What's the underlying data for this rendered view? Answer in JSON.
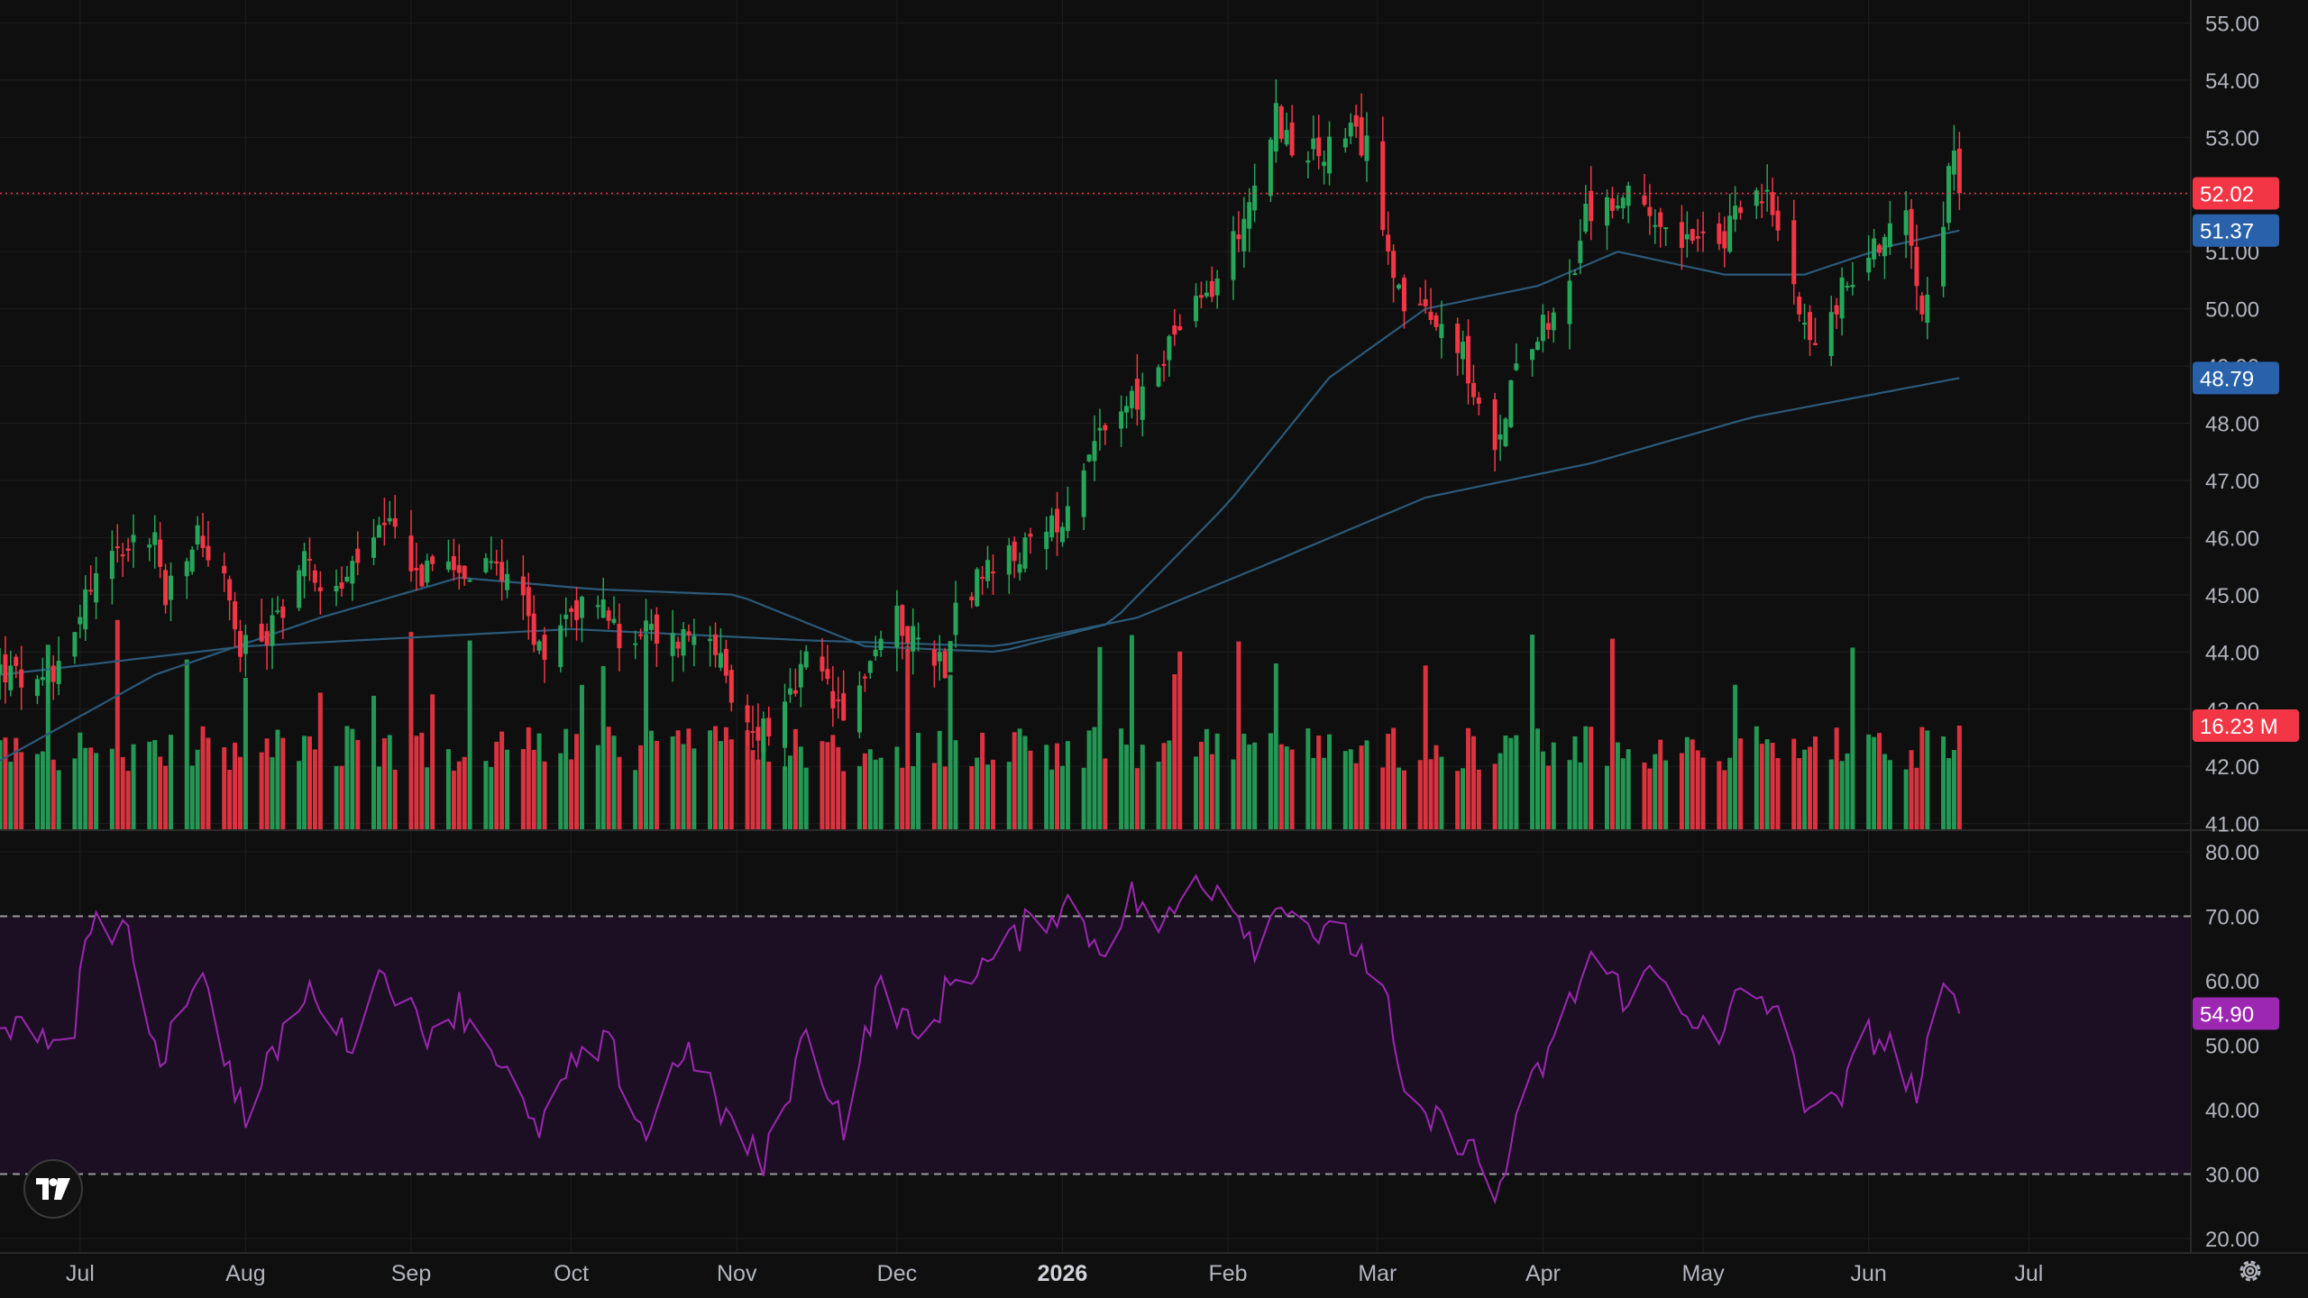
{
  "chart_data": {
    "type": "candlestick",
    "title": "",
    "x_range": [
      "2025-07-01",
      "2026-06-18"
    ],
    "price_axis": {
      "range": [
        40.9,
        55.4
      ],
      "ticks": [
        "55.00",
        "54.00",
        "53.00",
        "52.00",
        "51.00",
        "50.00",
        "49.00",
        "48.00",
        "47.00",
        "46.00",
        "45.00",
        "44.00",
        "43.00",
        "42.00",
        "41.00"
      ]
    },
    "time_axis": {
      "labels": [
        {
          "label": "Jul",
          "date": "2025-07-01"
        },
        {
          "label": "Aug",
          "date": "2025-08-01"
        },
        {
          "label": "Sep",
          "date": "2025-09-01"
        },
        {
          "label": "Oct",
          "date": "2025-10-01"
        },
        {
          "label": "Nov",
          "date": "2025-11-01"
        },
        {
          "label": "Dec",
          "date": "2025-12-01"
        },
        {
          "label": "2026",
          "date": "2026-01-01",
          "strong": true
        },
        {
          "label": "Feb",
          "date": "2026-02-01"
        },
        {
          "label": "Mar",
          "date": "2026-03-01"
        },
        {
          "label": "Apr",
          "date": "2026-04-01"
        },
        {
          "label": "May",
          "date": "2026-05-01"
        },
        {
          "label": "Jun",
          "date": "2026-06-01"
        },
        {
          "label": "Jul",
          "date": "2026-07-01"
        }
      ]
    },
    "price_anchors": [
      [
        "2025-06-16",
        43.7
      ],
      [
        "2025-06-24",
        43.3
      ],
      [
        "2025-06-27",
        43.9
      ],
      [
        "2025-07-03",
        45.2
      ],
      [
        "2025-07-09",
        45.9
      ],
      [
        "2025-07-15",
        46.0
      ],
      [
        "2025-07-17",
        44.9
      ],
      [
        "2025-07-21",
        45.6
      ],
      [
        "2025-07-23",
        46.1
      ],
      [
        "2025-07-28",
        45.2
      ],
      [
        "2025-07-31",
        44.0
      ],
      [
        "2025-08-05",
        44.3
      ],
      [
        "2025-08-12",
        45.6
      ],
      [
        "2025-08-18",
        45.0
      ],
      [
        "2025-08-25",
        46.0
      ],
      [
        "2025-08-29",
        46.1
      ],
      [
        "2025-09-03",
        45.3
      ],
      [
        "2025-09-08",
        45.8
      ],
      [
        "2025-09-12",
        45.3
      ],
      [
        "2025-09-18",
        45.5
      ],
      [
        "2025-09-22",
        45.0
      ],
      [
        "2025-09-25",
        44.0
      ],
      [
        "2025-10-01",
        44.8
      ],
      [
        "2025-10-07",
        44.9
      ],
      [
        "2025-10-10",
        44.1
      ],
      [
        "2025-10-14",
        44.4
      ],
      [
        "2025-10-20",
        44.2
      ],
      [
        "2025-10-27",
        44.5
      ],
      [
        "2025-10-31",
        43.0
      ],
      [
        "2025-11-04",
        42.6
      ],
      [
        "2025-11-10",
        42.9
      ],
      [
        "2025-11-14",
        43.8
      ],
      [
        "2025-11-18",
        43.4
      ],
      [
        "2025-11-21",
        42.7
      ],
      [
        "2025-11-26",
        43.9
      ],
      [
        "2025-12-01",
        44.6
      ],
      [
        "2025-12-05",
        44.2
      ],
      [
        "2025-12-10",
        43.8
      ],
      [
        "2025-12-12",
        44.9
      ],
      [
        "2025-12-17",
        45.3
      ],
      [
        "2025-12-22",
        45.6
      ],
      [
        "2025-12-29",
        46.0
      ],
      [
        "2026-01-02",
        46.6
      ],
      [
        "2026-01-06",
        47.6
      ],
      [
        "2026-01-12",
        48.4
      ],
      [
        "2026-01-16",
        48.4
      ],
      [
        "2026-01-22",
        49.6
      ],
      [
        "2026-01-27",
        50.1
      ],
      [
        "2026-01-30",
        50.5
      ],
      [
        "2026-02-05",
        51.9
      ],
      [
        "2026-02-10",
        53.4
      ],
      [
        "2026-02-13",
        52.8
      ],
      [
        "2026-02-18",
        52.7
      ],
      [
        "2026-02-24",
        53.0
      ],
      [
        "2026-02-27",
        52.8
      ],
      [
        "2026-03-03",
        51.2
      ],
      [
        "2026-03-06",
        50.0
      ],
      [
        "2026-03-10",
        49.8
      ],
      [
        "2026-03-16",
        49.5
      ],
      [
        "2026-03-19",
        48.5
      ],
      [
        "2026-03-23",
        47.3
      ],
      [
        "2026-03-27",
        49.2
      ],
      [
        "2026-04-01",
        49.8
      ],
      [
        "2026-04-06",
        50.3
      ],
      [
        "2026-04-09",
        51.6
      ],
      [
        "2026-04-14",
        51.9
      ],
      [
        "2026-04-20",
        51.9
      ],
      [
        "2026-04-24",
        51.5
      ],
      [
        "2026-04-29",
        51.2
      ],
      [
        "2026-05-04",
        51.0
      ],
      [
        "2026-05-08",
        51.9
      ],
      [
        "2026-05-13",
        51.9
      ],
      [
        "2026-05-18",
        50.5
      ],
      [
        "2026-05-22",
        49.2
      ],
      [
        "2026-05-27",
        50.3
      ],
      [
        "2026-06-01",
        51.0
      ],
      [
        "2026-06-05",
        51.4
      ],
      [
        "2026-06-08",
        51.8
      ],
      [
        "2026-06-11",
        50.1
      ],
      [
        "2026-06-15",
        51.7
      ],
      [
        "2026-06-17",
        52.8
      ],
      [
        "2026-06-18",
        52.02
      ]
    ],
    "series": [
      {
        "name": "",
        "kind": "moving-average",
        "color": "#2b5a7a",
        "points": [
          [
            "2025-06-16",
            42.1
          ],
          [
            "2025-07-15",
            43.6
          ],
          [
            "2025-08-15",
            44.6
          ],
          [
            "2025-09-10",
            45.3
          ],
          [
            "2025-10-05",
            45.1
          ],
          [
            "2025-11-01",
            45.0
          ],
          [
            "2025-11-25",
            44.1
          ],
          [
            "2025-12-20",
            44.0
          ],
          [
            "2026-01-10",
            44.5
          ],
          [
            "2026-02-01",
            46.6
          ],
          [
            "2026-02-20",
            48.8
          ],
          [
            "2026-03-10",
            50.0
          ],
          [
            "2026-03-31",
            50.4
          ],
          [
            "2026-04-15",
            51.0
          ],
          [
            "2026-05-05",
            50.6
          ],
          [
            "2026-05-20",
            50.6
          ],
          [
            "2026-06-05",
            51.1
          ],
          [
            "2026-06-18",
            51.37
          ]
        ]
      },
      {
        "name": "",
        "kind": "moving-average",
        "color": "#2b5a7a",
        "points": [
          [
            "2025-06-16",
            43.6
          ],
          [
            "2025-08-01",
            44.1
          ],
          [
            "2025-10-01",
            44.4
          ],
          [
            "2025-11-15",
            44.2
          ],
          [
            "2025-12-20",
            44.1
          ],
          [
            "2026-01-15",
            44.6
          ],
          [
            "2026-02-10",
            45.6
          ],
          [
            "2026-03-10",
            46.7
          ],
          [
            "2026-04-10",
            47.3
          ],
          [
            "2026-05-10",
            48.1
          ],
          [
            "2026-06-18",
            48.79
          ]
        ]
      }
    ],
    "price_labels": [
      {
        "value": "52.02",
        "price": 52.02,
        "color": "#f23645",
        "role": "last-price"
      },
      {
        "value": "51.37",
        "price": 51.37,
        "color": "#2962ab",
        "role": "ma-fast"
      },
      {
        "value": "48.79",
        "price": 48.79,
        "color": "#2962ab",
        "role": "ma-slow"
      }
    ],
    "volume": {
      "last_label": "16.23 M",
      "last_fraction": 0.5
    },
    "rsi": {
      "range": [
        20,
        80
      ],
      "ticks": [
        "80.00",
        "70.00",
        "60.00",
        "50.00",
        "40.00",
        "30.00",
        "20.00"
      ],
      "upper_band": 70,
      "lower_band": 30,
      "last_value": "54.90",
      "last": 54.9,
      "line_color": "#9c27b0",
      "anchors": [
        [
          "2025-06-16",
          55
        ],
        [
          "2025-06-23",
          49
        ],
        [
          "2025-06-30",
          54
        ],
        [
          "2025-07-03",
          70
        ],
        [
          "2025-07-10",
          66
        ],
        [
          "2025-07-16",
          48
        ],
        [
          "2025-07-23",
          62
        ],
        [
          "2025-07-30",
          44
        ],
        [
          "2025-08-01",
          38
        ],
        [
          "2025-08-08",
          52
        ],
        [
          "2025-08-14",
          59
        ],
        [
          "2025-08-20",
          50
        ],
        [
          "2025-08-27",
          62
        ],
        [
          "2025-09-03",
          52
        ],
        [
          "2025-09-10",
          56
        ],
        [
          "2025-09-17",
          49
        ],
        [
          "2025-09-24",
          36
        ],
        [
          "2025-10-01",
          46
        ],
        [
          "2025-10-08",
          50
        ],
        [
          "2025-10-15",
          36
        ],
        [
          "2025-10-22",
          50
        ],
        [
          "2025-10-29",
          40
        ],
        [
          "2025-11-06",
          31
        ],
        [
          "2025-11-14",
          52
        ],
        [
          "2025-11-21",
          38
        ],
        [
          "2025-11-28",
          60
        ],
        [
          "2025-12-05",
          50
        ],
        [
          "2025-12-12",
          61
        ],
        [
          "2025-12-19",
          63
        ],
        [
          "2025-12-26",
          69
        ],
        [
          "2026-01-02",
          72
        ],
        [
          "2026-01-08",
          65
        ],
        [
          "2026-01-14",
          73
        ],
        [
          "2026-01-20",
          68
        ],
        [
          "2026-01-26",
          76
        ],
        [
          "2026-02-01",
          74
        ],
        [
          "2026-02-06",
          66
        ],
        [
          "2026-02-12",
          73
        ],
        [
          "2026-02-18",
          67
        ],
        [
          "2026-02-24",
          66
        ],
        [
          "2026-03-02",
          60
        ],
        [
          "2026-03-06",
          40
        ],
        [
          "2026-03-12",
          38
        ],
        [
          "2026-03-18",
          35
        ],
        [
          "2026-03-23",
          26
        ],
        [
          "2026-03-29",
          42
        ],
        [
          "2026-04-04",
          52
        ],
        [
          "2026-04-10",
          64
        ],
        [
          "2026-04-16",
          58
        ],
        [
          "2026-04-22",
          61
        ],
        [
          "2026-04-28",
          56
        ],
        [
          "2026-05-04",
          49
        ],
        [
          "2026-05-08",
          59
        ],
        [
          "2026-05-14",
          56
        ],
        [
          "2026-05-20",
          42
        ],
        [
          "2026-05-26",
          40
        ],
        [
          "2026-06-01",
          52
        ],
        [
          "2026-06-06",
          49
        ],
        [
          "2026-06-10",
          42
        ],
        [
          "2026-06-15",
          58
        ],
        [
          "2026-06-18",
          54.9
        ]
      ]
    },
    "colors": {
      "background": "#0f0f0f",
      "up": "#26a65b",
      "down": "#f23645",
      "grid": "#1e1e1e",
      "rsi_band_fill": "#1c0f24",
      "price_line": "#f23645"
    },
    "grid": true
  },
  "icons": {
    "logo": "tradingview-logo-icon",
    "settings": "gear-icon"
  }
}
